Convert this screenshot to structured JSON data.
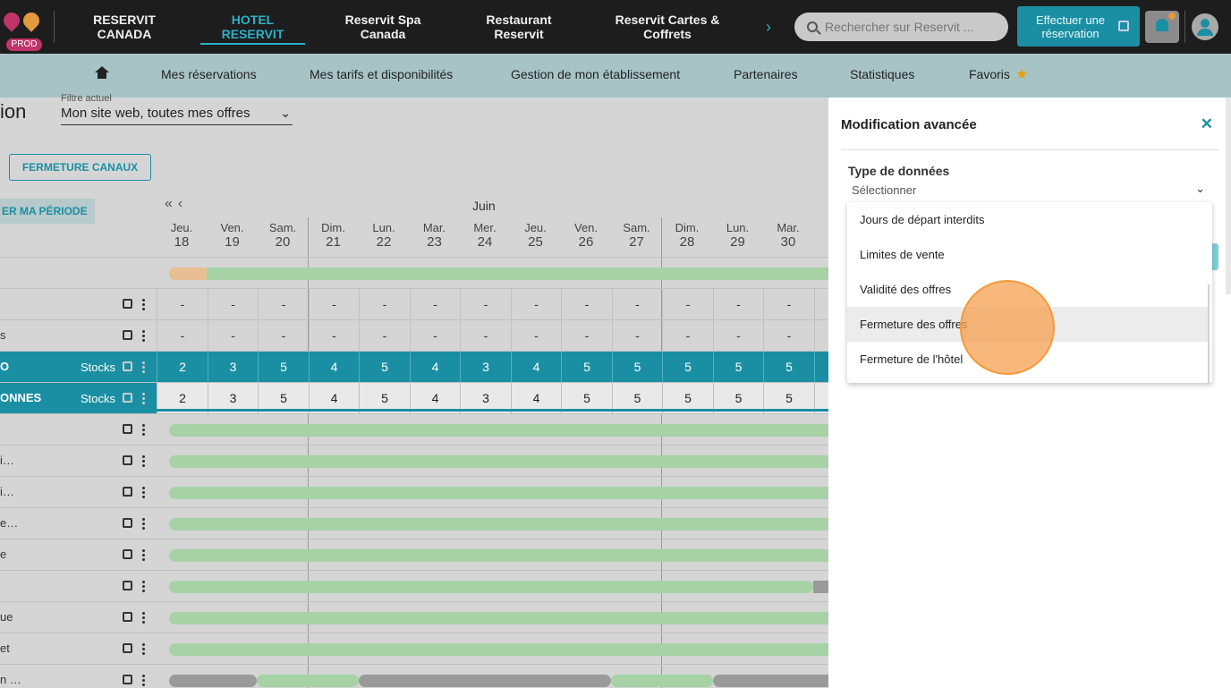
{
  "header": {
    "badge": "PROD",
    "tabs": [
      {
        "label": "RESERVIT CANADA"
      },
      {
        "label": "HOTEL RESERVIT"
      },
      {
        "label": "Reservit Spa Canada"
      },
      {
        "label": "Restaurant Reservit"
      },
      {
        "label": "Reservit Cartes & Coffrets"
      }
    ],
    "search_placeholder": "Rechercher sur Reservit ...",
    "booking_button": "Effectuer une réservation"
  },
  "subnav": {
    "items": [
      "Mes réservations",
      "Mes tarifs et disponibilités",
      "Gestion de mon établissement",
      "Partenaires",
      "Statistiques",
      "Favoris"
    ]
  },
  "main": {
    "title_fragment": "ion",
    "filter_label": "Filtre actuel",
    "filter_value": "Mon site web, toutes mes offres",
    "fermeture_button": "FERMETURE CANAUX",
    "periode_button": "ER MA PÉRIODE",
    "month": "Juin",
    "days": [
      {
        "d": "Jeu.",
        "n": "18"
      },
      {
        "d": "Ven.",
        "n": "19"
      },
      {
        "d": "Sam.",
        "n": "20"
      },
      {
        "d": "Dim.",
        "n": "21"
      },
      {
        "d": "Lun.",
        "n": "22"
      },
      {
        "d": "Mar.",
        "n": "23"
      },
      {
        "d": "Mer.",
        "n": "24"
      },
      {
        "d": "Jeu.",
        "n": "25"
      },
      {
        "d": "Ven.",
        "n": "26"
      },
      {
        "d": "Sam.",
        "n": "27"
      },
      {
        "d": "Dim.",
        "n": "28"
      },
      {
        "d": "Lun.",
        "n": "29"
      },
      {
        "d": "Mar.",
        "n": "30"
      }
    ],
    "rows": [
      {
        "label": "",
        "type": "progress"
      },
      {
        "label": "",
        "type": "dash"
      },
      {
        "label": "s",
        "type": "dash"
      },
      {
        "label": "O",
        "type": "stock",
        "stocks_label": "Stocks",
        "values": [
          "2",
          "3",
          "5",
          "4",
          "5",
          "4",
          "3",
          "4",
          "5",
          "5",
          "5",
          "5",
          "5"
        ]
      },
      {
        "label": "ONNES",
        "type": "stock2",
        "stocks_label": "Stocks",
        "values": [
          "2",
          "3",
          "5",
          "4",
          "5",
          "4",
          "3",
          "4",
          "5",
          "5",
          "5",
          "5",
          "5"
        ]
      },
      {
        "label": "",
        "type": "bar"
      },
      {
        "label": "i…",
        "type": "bar"
      },
      {
        "label": "i…",
        "type": "bar"
      },
      {
        "label": "e…",
        "type": "bar"
      },
      {
        "label": "e",
        "type": "bar"
      },
      {
        "label": "",
        "type": "bar"
      },
      {
        "label": "ue",
        "type": "bar"
      },
      {
        "label": "et",
        "type": "bar"
      },
      {
        "label": "n …",
        "type": "mixed"
      }
    ]
  },
  "panel": {
    "title": "Modification avancée",
    "field_label": "Type de données",
    "select_value": "Sélectionner",
    "options": [
      "Jours de départ interdits",
      "Limites de vente",
      "Validité des offres",
      "Fermeture des offres",
      "Fermeture de l'hôtel"
    ],
    "hovered_option": "Fermeture des offres"
  },
  "colors": {
    "accent": "#1a8fa3",
    "bar_green": "#a6d2a6",
    "bar_orange": "#e8bf92",
    "bar_grey": "#9a9a9a"
  }
}
